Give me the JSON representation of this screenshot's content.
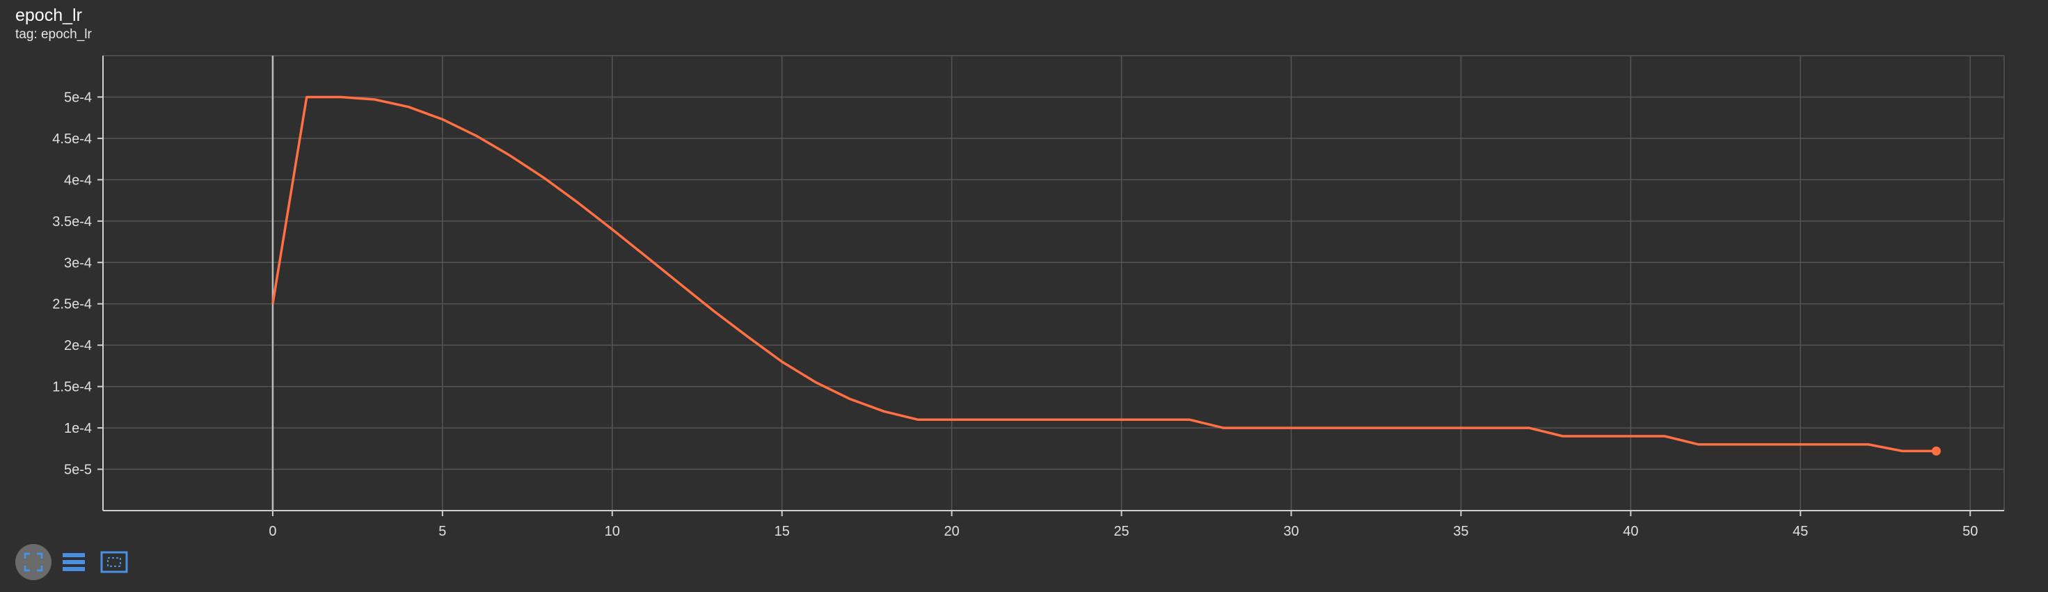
{
  "card": {
    "title": "epoch_lr",
    "subtitle": "tag: epoch_lr"
  },
  "toolbar": {
    "items": [
      {
        "icon": "fit-domain-icon",
        "active": true
      },
      {
        "icon": "list-icon",
        "active": false
      },
      {
        "icon": "select-region-icon",
        "active": false
      }
    ]
  },
  "colors": {
    "background": "#2f2f2f",
    "series": "#ff7043",
    "grid": "#555555",
    "axis": "#d0d0d0",
    "icon": "#4a90e2"
  },
  "chart_data": {
    "type": "line",
    "title": "epoch_lr",
    "xlabel": "",
    "ylabel": "",
    "xlim": [
      -5,
      51
    ],
    "ylim": [
      0,
      0.00055
    ],
    "grid": true,
    "x_ticks": [
      0,
      5,
      10,
      15,
      20,
      25,
      30,
      35,
      40,
      45,
      50
    ],
    "y_ticks": [
      5e-05,
      0.0001,
      0.00015,
      0.0002,
      0.00025,
      0.0003,
      0.00035,
      0.0004,
      0.00045,
      0.0005
    ],
    "y_tick_labels": [
      "5e-5",
      "1e-4",
      "1.5e-4",
      "2e-4",
      "2.5e-4",
      "3e-4",
      "3.5e-4",
      "4e-4",
      "4.5e-4",
      "5e-4"
    ],
    "series": [
      {
        "x": [
          0,
          1,
          2,
          3,
          4,
          5,
          6,
          7,
          8,
          9,
          10,
          11,
          12,
          13,
          14,
          15,
          16,
          17,
          18,
          19,
          20,
          21,
          22,
          23,
          24,
          25,
          26,
          27,
          28,
          29,
          30,
          31,
          32,
          33,
          34,
          35,
          36,
          37,
          38,
          39,
          40,
          41,
          42,
          43,
          44,
          45,
          46,
          47,
          48,
          49
        ],
        "values": [
          0.00025,
          0.0005,
          0.0005,
          0.000497,
          0.000488,
          0.000473,
          0.000453,
          0.000429,
          0.000402,
          0.000372,
          0.00034,
          0.000307,
          0.000274,
          0.000241,
          0.00021,
          0.00018,
          0.000155,
          0.000135,
          0.00012,
          0.00011,
          0.00011,
          0.00011,
          0.00011,
          0.00011,
          0.00011,
          0.00011,
          0.00011,
          0.00011,
          0.0001,
          0.0001,
          0.0001,
          0.0001,
          0.0001,
          0.0001,
          0.0001,
          0.0001,
          0.0001,
          0.0001,
          9e-05,
          9e-05,
          9e-05,
          9e-05,
          8e-05,
          8e-05,
          8e-05,
          8e-05,
          8e-05,
          8e-05,
          7.2e-05,
          7.2e-05
        ]
      }
    ]
  }
}
